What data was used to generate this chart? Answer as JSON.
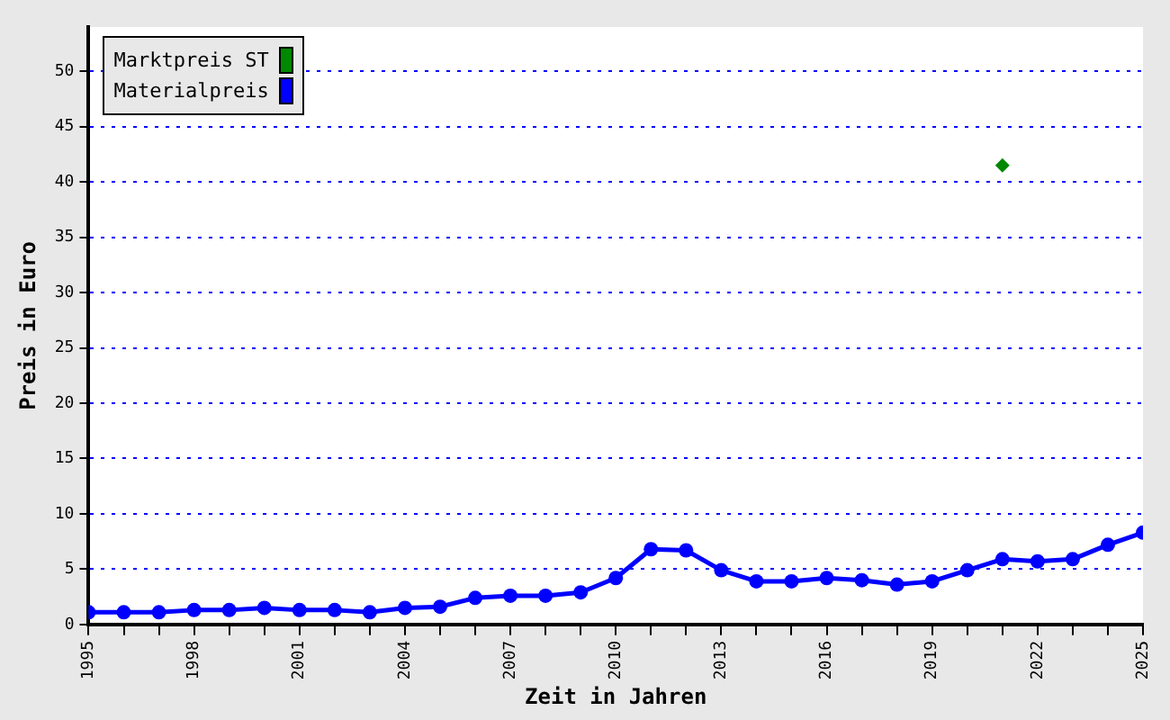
{
  "chart_data": {
    "type": "line",
    "xlabel": "Zeit in Jahren",
    "ylabel": "Preis in Euro",
    "xlim": [
      1995,
      2025
    ],
    "xticks": [
      1995,
      {
        "value": 1996,
        "label": null
      },
      {
        "value": 1997,
        "label": null
      },
      1998,
      {
        "value": 1999,
        "label": null
      },
      {
        "value": 2000,
        "label": null
      },
      2001,
      {
        "value": 2002,
        "label": null
      },
      {
        "value": 2003,
        "label": null
      },
      2004,
      {
        "value": 2005,
        "label": null
      },
      {
        "value": 2006,
        "label": null
      },
      2007,
      {
        "value": 2008,
        "label": null
      },
      {
        "value": 2009,
        "label": null
      },
      2010,
      {
        "value": 2011,
        "label": null
      },
      {
        "value": 2012,
        "label": null
      },
      2013,
      {
        "value": 2014,
        "label": null
      },
      {
        "value": 2015,
        "label": null
      },
      2016,
      {
        "value": 2017,
        "label": null
      },
      {
        "value": 2018,
        "label": null
      },
      2019,
      {
        "value": 2020,
        "label": null
      },
      {
        "value": 2021,
        "label": null
      },
      2022,
      {
        "value": 2023,
        "label": null
      },
      {
        "value": 2024,
        "label": null
      },
      2025
    ],
    "ylim": [
      0,
      54
    ],
    "yticks": [
      0,
      5,
      10,
      15,
      20,
      25,
      30,
      35,
      40,
      45,
      50
    ],
    "grid": "y",
    "legend": "top left",
    "series": [
      {
        "name": "Marktpreis ST",
        "type": "scatter",
        "marker": "diamond",
        "color": "#008800",
        "x": [
          2021
        ],
        "values": [
          41.5
        ]
      },
      {
        "name": "Materialpreis",
        "type": "line",
        "marker": "circle",
        "color": "#0000ff",
        "x": [
          1995,
          1996,
          1997,
          1998,
          1999,
          2000,
          2001,
          2002,
          2003,
          2004,
          2005,
          2006,
          2007,
          2008,
          2009,
          2010,
          2011,
          2012,
          2013,
          2014,
          2015,
          2016,
          2017,
          2018,
          2019,
          2020,
          2021,
          2022,
          2023,
          2024,
          2025
        ],
        "values": [
          1.1,
          1.1,
          1.1,
          1.3,
          1.3,
          1.5,
          1.3,
          1.3,
          1.1,
          1.5,
          1.6,
          2.4,
          2.6,
          2.6,
          2.9,
          4.2,
          6.8,
          6.7,
          4.9,
          3.9,
          3.9,
          4.2,
          4.0,
          3.6,
          3.9,
          4.9,
          5.9,
          5.7,
          5.9,
          7.2,
          8.3
        ]
      }
    ]
  }
}
